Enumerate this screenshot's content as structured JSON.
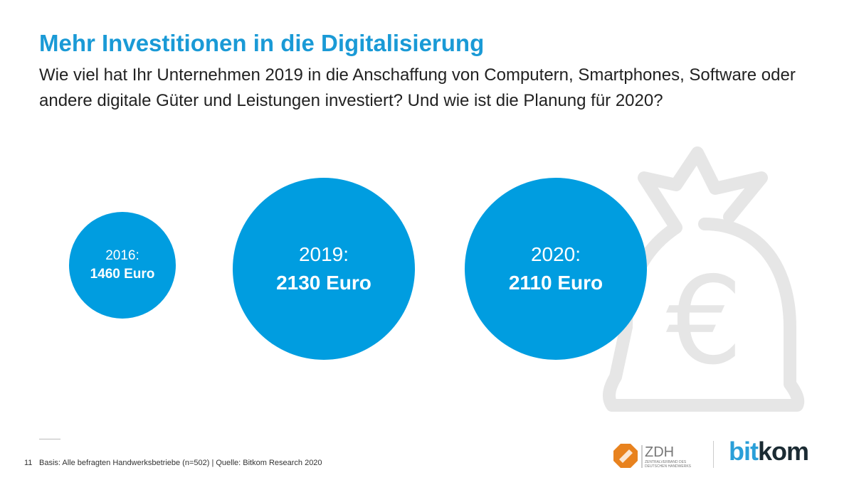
{
  "slide": {
    "title": "Mehr Investitionen in die Digitalisierung",
    "subtitle": "Wie viel hat Ihr Unternehmen 2019 in die Anschaffung von Computern, Smartphones, Software oder andere digitale Güter und Leistungen investiert? Und wie ist die Planung für 2020?",
    "page_number": "11",
    "source": "Basis: Alle befragten Handwerksbetriebe (n=502) | Quelle: Bitkom Research 2020",
    "accent_color": "#1a9ad6",
    "circle_color": "#009de0",
    "background_icon": "money-bag-euro-icon"
  },
  "chart_data": {
    "type": "bubble",
    "categories": [
      "2016:",
      "2019:",
      "2020:"
    ],
    "labels": [
      "1460 Euro",
      "2130 Euro",
      "2110 Euro"
    ],
    "values": [
      1460,
      2130,
      2110
    ],
    "unit": "Euro"
  },
  "logos": {
    "zdh": {
      "name": "ZDH",
      "tagline": "ZENTRALVERBAND DES DEUTSCHEN HANDWERKS",
      "color": "#e8821e"
    },
    "bitkom": {
      "part1": "bit",
      "part2": "kom"
    }
  }
}
